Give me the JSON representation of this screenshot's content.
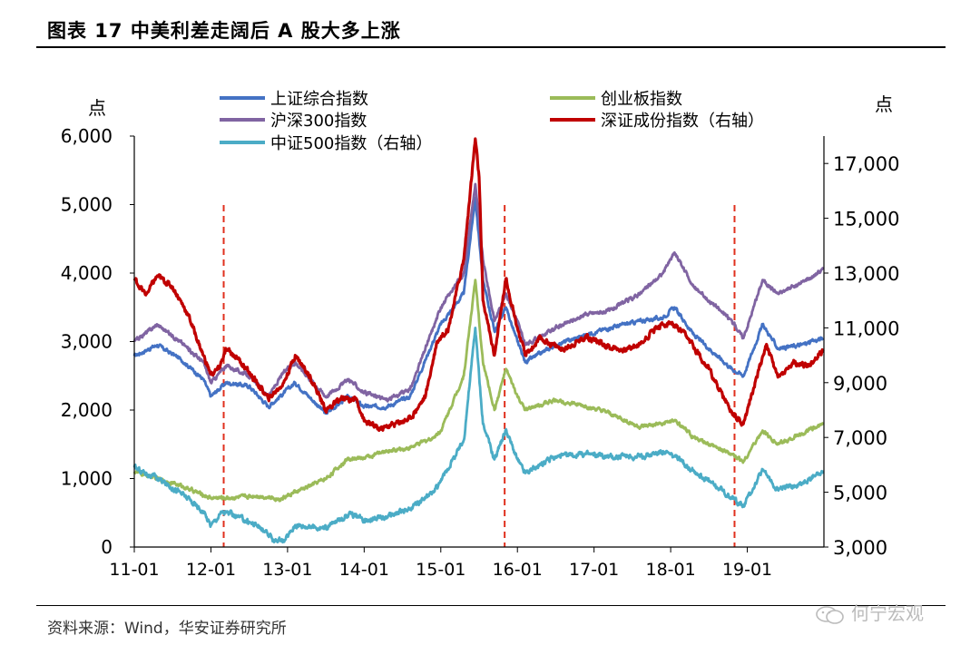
{
  "header": {
    "title": "图表 17 中美利差走阔后 A 股大多上涨"
  },
  "footer": {
    "source": "资料来源：Wind，华安证券研究所",
    "watermark": "何宁宏观"
  },
  "colors": {
    "shanghai": "#4472C4",
    "chinext": "#9BBB59",
    "hs300": "#8064A2",
    "shenzhen": "#C00000",
    "csi500": "#4BACC6",
    "event_line": "#E0301E"
  },
  "chart_data": {
    "type": "line",
    "y_left": {
      "label": "点",
      "range": [
        0,
        6000
      ],
      "ticks": [
        "0",
        "1,000",
        "2,000",
        "3,000",
        "4,000",
        "5,000",
        "6,000"
      ]
    },
    "y_right": {
      "label": "点",
      "range": [
        3000,
        18000
      ],
      "ticks": [
        "3,000",
        "5,000",
        "7,000",
        "9,000",
        "11,000",
        "13,000",
        "15,000",
        "17,000"
      ]
    },
    "x_ticks": [
      "11-01",
      "12-01",
      "13-01",
      "14-01",
      "15-01",
      "16-01",
      "17-01",
      "18-01",
      "19-01"
    ],
    "legend": [
      "上证综合指数",
      "创业板指数",
      "沪深300指数",
      "深证成份指数（右轴）",
      "中证500指数（右轴）"
    ],
    "event_markers": [
      "2012-03",
      "2015-11",
      "2018-11"
    ],
    "series": [
      {
        "name": "上证综合指数",
        "axis": "left",
        "points": [
          [
            2011.0,
            2790
          ],
          [
            2011.3,
            2950
          ],
          [
            2011.6,
            2750
          ],
          [
            2011.9,
            2450
          ],
          [
            2012.0,
            2200
          ],
          [
            2012.2,
            2400
          ],
          [
            2012.5,
            2350
          ],
          [
            2012.75,
            2050
          ],
          [
            2012.95,
            2250
          ],
          [
            2013.1,
            2400
          ],
          [
            2013.5,
            1950
          ],
          [
            2013.8,
            2200
          ],
          [
            2014.0,
            2050
          ],
          [
            2014.3,
            2050
          ],
          [
            2014.6,
            2200
          ],
          [
            2014.9,
            3000
          ],
          [
            2015.0,
            3250
          ],
          [
            2015.3,
            3700
          ],
          [
            2015.45,
            5100
          ],
          [
            2015.55,
            3900
          ],
          [
            2015.7,
            3150
          ],
          [
            2015.85,
            3500
          ],
          [
            2016.0,
            3000
          ],
          [
            2016.1,
            2700
          ],
          [
            2016.5,
            2950
          ],
          [
            2016.9,
            3100
          ],
          [
            2017.2,
            3200
          ],
          [
            2017.6,
            3300
          ],
          [
            2017.9,
            3350
          ],
          [
            2018.05,
            3500
          ],
          [
            2018.3,
            3100
          ],
          [
            2018.6,
            2800
          ],
          [
            2018.8,
            2600
          ],
          [
            2018.95,
            2500
          ],
          [
            2019.2,
            3250
          ],
          [
            2019.4,
            2900
          ],
          [
            2019.7,
            2950
          ],
          [
            2019.99,
            3050
          ]
        ]
      },
      {
        "name": "创业板指数",
        "axis": "left",
        "points": [
          [
            2011.0,
            1100
          ],
          [
            2011.3,
            1000
          ],
          [
            2011.6,
            900
          ],
          [
            2011.9,
            760
          ],
          [
            2012.0,
            720
          ],
          [
            2012.3,
            720
          ],
          [
            2012.6,
            750
          ],
          [
            2012.9,
            700
          ],
          [
            2013.1,
            800
          ],
          [
            2013.5,
            1000
          ],
          [
            2013.8,
            1300
          ],
          [
            2014.0,
            1300
          ],
          [
            2014.3,
            1400
          ],
          [
            2014.6,
            1450
          ],
          [
            2014.9,
            1600
          ],
          [
            2015.0,
            1700
          ],
          [
            2015.3,
            2500
          ],
          [
            2015.45,
            3900
          ],
          [
            2015.55,
            2700
          ],
          [
            2015.7,
            2000
          ],
          [
            2015.85,
            2600
          ],
          [
            2016.0,
            2200
          ],
          [
            2016.1,
            2000
          ],
          [
            2016.5,
            2150
          ],
          [
            2016.9,
            2050
          ],
          [
            2017.2,
            1950
          ],
          [
            2017.6,
            1750
          ],
          [
            2017.9,
            1800
          ],
          [
            2018.05,
            1850
          ],
          [
            2018.3,
            1600
          ],
          [
            2018.6,
            1450
          ],
          [
            2018.8,
            1350
          ],
          [
            2018.95,
            1250
          ],
          [
            2019.2,
            1700
          ],
          [
            2019.4,
            1500
          ],
          [
            2019.7,
            1650
          ],
          [
            2019.99,
            1800
          ]
        ]
      },
      {
        "name": "沪深300指数",
        "axis": "left",
        "points": [
          [
            2011.0,
            3000
          ],
          [
            2011.3,
            3250
          ],
          [
            2011.6,
            3000
          ],
          [
            2011.9,
            2700
          ],
          [
            2012.0,
            2400
          ],
          [
            2012.2,
            2650
          ],
          [
            2012.5,
            2500
          ],
          [
            2012.75,
            2200
          ],
          [
            2012.95,
            2550
          ],
          [
            2013.1,
            2700
          ],
          [
            2013.5,
            2200
          ],
          [
            2013.8,
            2450
          ],
          [
            2014.0,
            2250
          ],
          [
            2014.3,
            2150
          ],
          [
            2014.6,
            2300
          ],
          [
            2014.9,
            3200
          ],
          [
            2015.0,
            3500
          ],
          [
            2015.3,
            4000
          ],
          [
            2015.45,
            5300
          ],
          [
            2015.55,
            4200
          ],
          [
            2015.7,
            3300
          ],
          [
            2015.85,
            3700
          ],
          [
            2016.0,
            3300
          ],
          [
            2016.1,
            2950
          ],
          [
            2016.5,
            3200
          ],
          [
            2016.9,
            3400
          ],
          [
            2017.2,
            3450
          ],
          [
            2017.6,
            3700
          ],
          [
            2017.9,
            4000
          ],
          [
            2018.05,
            4300
          ],
          [
            2018.3,
            3800
          ],
          [
            2018.6,
            3500
          ],
          [
            2018.8,
            3300
          ],
          [
            2018.95,
            3050
          ],
          [
            2019.2,
            3900
          ],
          [
            2019.4,
            3700
          ],
          [
            2019.7,
            3850
          ],
          [
            2019.99,
            4050
          ]
        ]
      },
      {
        "name": "深证成份指数（右轴）",
        "axis": "right",
        "points": [
          [
            2011.0,
            12800
          ],
          [
            2011.15,
            12200
          ],
          [
            2011.3,
            12900
          ],
          [
            2011.5,
            12500
          ],
          [
            2011.7,
            11500
          ],
          [
            2011.9,
            10000
          ],
          [
            2012.0,
            9300
          ],
          [
            2012.1,
            9500
          ],
          [
            2012.2,
            10200
          ],
          [
            2012.35,
            9900
          ],
          [
            2012.6,
            9000
          ],
          [
            2012.75,
            8400
          ],
          [
            2012.95,
            9000
          ],
          [
            2013.1,
            10000
          ],
          [
            2013.3,
            9200
          ],
          [
            2013.5,
            8000
          ],
          [
            2013.7,
            8400
          ],
          [
            2013.9,
            8400
          ],
          [
            2014.0,
            7600
          ],
          [
            2014.2,
            7300
          ],
          [
            2014.4,
            7500
          ],
          [
            2014.6,
            7700
          ],
          [
            2014.8,
            8500
          ],
          [
            2014.95,
            10500
          ],
          [
            2015.1,
            11000
          ],
          [
            2015.3,
            13500
          ],
          [
            2015.45,
            17900
          ],
          [
            2015.5,
            16500
          ],
          [
            2015.55,
            12000
          ],
          [
            2015.7,
            10000
          ],
          [
            2015.85,
            12800
          ],
          [
            2016.0,
            11000
          ],
          [
            2016.1,
            10000
          ],
          [
            2016.3,
            10600
          ],
          [
            2016.6,
            10200
          ],
          [
            2016.9,
            10700
          ],
          [
            2017.2,
            10300
          ],
          [
            2017.4,
            10200
          ],
          [
            2017.6,
            10400
          ],
          [
            2017.8,
            11000
          ],
          [
            2018.0,
            11200
          ],
          [
            2018.2,
            10700
          ],
          [
            2018.5,
            9500
          ],
          [
            2018.7,
            8400
          ],
          [
            2018.8,
            7900
          ],
          [
            2018.95,
            7500
          ],
          [
            2019.1,
            9000
          ],
          [
            2019.25,
            10400
          ],
          [
            2019.4,
            9200
          ],
          [
            2019.6,
            9700
          ],
          [
            2019.8,
            9600
          ],
          [
            2019.99,
            10200
          ]
        ]
      },
      {
        "name": "中证500指数（右轴）",
        "axis": "right",
        "points": [
          [
            2011.0,
            5900
          ],
          [
            2011.3,
            5500
          ],
          [
            2011.6,
            5000
          ],
          [
            2011.9,
            4300
          ],
          [
            2012.0,
            3800
          ],
          [
            2012.15,
            4300
          ],
          [
            2012.35,
            4100
          ],
          [
            2012.6,
            3800
          ],
          [
            2012.8,
            3300
          ],
          [
            2012.95,
            3200
          ],
          [
            2013.1,
            3800
          ],
          [
            2013.5,
            3700
          ],
          [
            2013.8,
            4200
          ],
          [
            2014.0,
            4000
          ],
          [
            2014.3,
            4100
          ],
          [
            2014.6,
            4400
          ],
          [
            2014.9,
            5000
          ],
          [
            2015.0,
            5400
          ],
          [
            2015.3,
            6900
          ],
          [
            2015.45,
            11000
          ],
          [
            2015.55,
            7500
          ],
          [
            2015.7,
            6200
          ],
          [
            2015.85,
            7300
          ],
          [
            2016.0,
            6200
          ],
          [
            2016.1,
            5700
          ],
          [
            2016.5,
            6300
          ],
          [
            2016.9,
            6400
          ],
          [
            2017.2,
            6300
          ],
          [
            2017.6,
            6300
          ],
          [
            2017.9,
            6500
          ],
          [
            2018.05,
            6300
          ],
          [
            2018.3,
            5800
          ],
          [
            2018.6,
            5200
          ],
          [
            2018.8,
            4800
          ],
          [
            2018.95,
            4500
          ],
          [
            2019.2,
            5800
          ],
          [
            2019.4,
            5100
          ],
          [
            2019.7,
            5300
          ],
          [
            2019.99,
            5800
          ]
        ]
      }
    ]
  }
}
